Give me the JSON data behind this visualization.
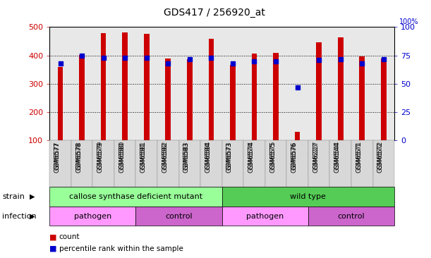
{
  "title": "GDS417 / 256920_at",
  "samples": [
    "GSM6577",
    "GSM6578",
    "GSM6579",
    "GSM6580",
    "GSM6581",
    "GSM6582",
    "GSM6583",
    "GSM6584",
    "GSM6573",
    "GSM6574",
    "GSM6575",
    "GSM6576",
    "GSM6227",
    "GSM6544",
    "GSM6571",
    "GSM6572"
  ],
  "counts": [
    360,
    401,
    478,
    481,
    476,
    390,
    387,
    458,
    367,
    407,
    408,
    130,
    446,
    465,
    396,
    390
  ],
  "percentiles": [
    68,
    75,
    73,
    73,
    73,
    68,
    72,
    73,
    68,
    70,
    70,
    47,
    71,
    72,
    68,
    72
  ],
  "ylim_left": [
    100,
    500
  ],
  "ylim_right": [
    0,
    100
  ],
  "yticks_left": [
    100,
    200,
    300,
    400,
    500
  ],
  "yticks_right": [
    0,
    25,
    50,
    75,
    100
  ],
  "bar_color": "#cc0000",
  "dot_color": "#0000cc",
  "strain_groups": [
    {
      "label": "callose synthase deficient mutant",
      "start": 0,
      "end": 8,
      "color": "#99ff99"
    },
    {
      "label": "wild type",
      "start": 8,
      "end": 16,
      "color": "#55cc55"
    }
  ],
  "infection_groups": [
    {
      "label": "pathogen",
      "start": 0,
      "end": 4,
      "color": "#ff99ff"
    },
    {
      "label": "control",
      "start": 4,
      "end": 8,
      "color": "#cc66cc"
    },
    {
      "label": "pathogen",
      "start": 8,
      "end": 12,
      "color": "#ff99ff"
    },
    {
      "label": "control",
      "start": 12,
      "end": 16,
      "color": "#cc66cc"
    }
  ],
  "bar_width": 0.25,
  "grid_color": "#000000",
  "tick_label_color_left": "#cc0000",
  "tick_label_color_right": "#0000cc",
  "plot_bg_color": "#e8e8e8",
  "xlim": [
    -0.5,
    15.5
  ]
}
